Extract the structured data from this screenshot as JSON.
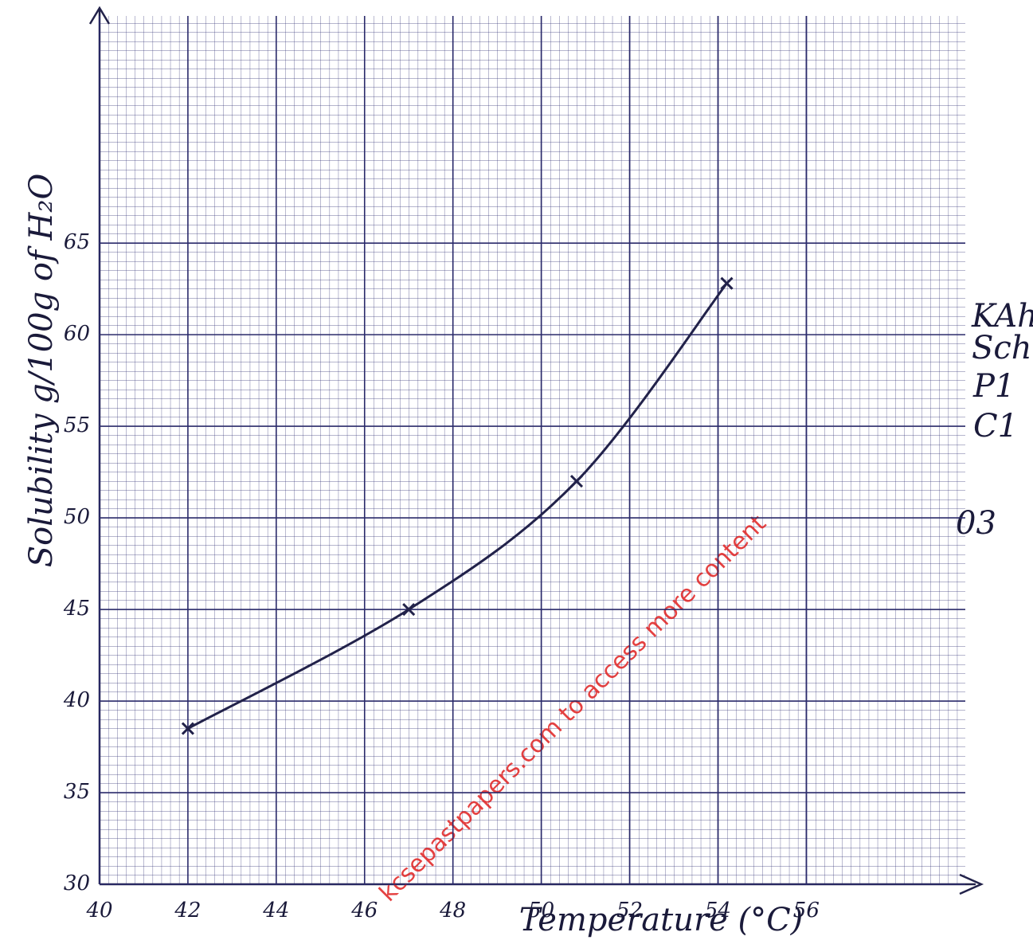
{
  "chart_data": {
    "type": "line",
    "x_label": "Temperature (°C)",
    "y_label": "Solubility g/100g of H₂O",
    "x": [
      42,
      47,
      50.8,
      54.2
    ],
    "series": [
      {
        "color": "#22224a",
        "values": [
          38.5,
          45,
          52,
          62.8
        ]
      }
    ],
    "xlim": [
      40,
      59.6
    ],
    "ylim": [
      30,
      77.4
    ],
    "xticks": [
      40,
      42,
      44,
      46,
      48,
      50,
      52,
      54,
      56
    ],
    "yticks": [
      30,
      35,
      40,
      45,
      50,
      55,
      60,
      65
    ],
    "grid": true,
    "annotations": [
      "KAh",
      "Sch",
      "P1",
      "C1",
      "03"
    ],
    "watermark": "kcsepastpapers.com to access more content"
  }
}
